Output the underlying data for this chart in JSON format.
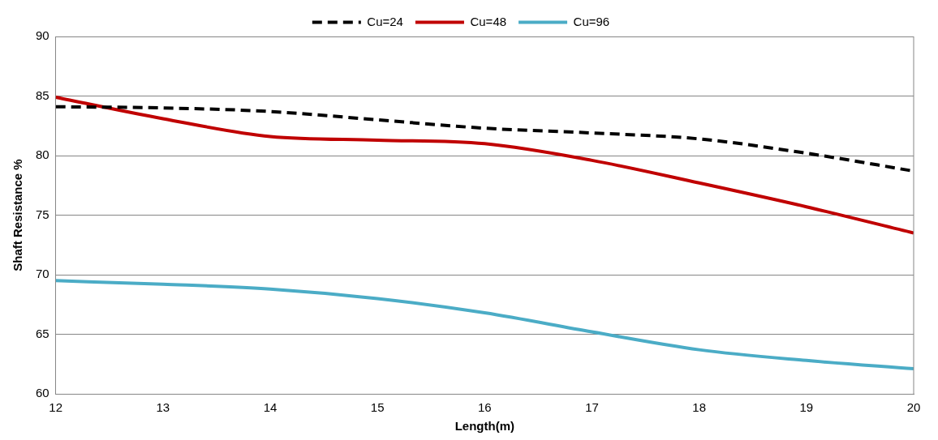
{
  "chart_data": {
    "type": "line",
    "xlabel": "Length(m)",
    "ylabel": "Shaft Resistance %",
    "x": [
      12,
      13,
      14,
      15,
      16,
      17,
      18,
      19,
      20
    ],
    "series": [
      {
        "name": "Cu=24",
        "color": "#000000",
        "line_style": "dashed",
        "values": [
          84.1,
          84.0,
          83.7,
          83.0,
          82.3,
          81.9,
          81.4,
          80.2,
          78.7
        ]
      },
      {
        "name": "Cu=48",
        "color": "#c00000",
        "values": [
          84.9,
          83.1,
          81.6,
          81.3,
          81.0,
          79.6,
          77.7,
          75.7,
          73.5
        ]
      },
      {
        "name": "Cu=96",
        "color": "#4bacc6",
        "values": [
          69.5,
          69.2,
          68.8,
          68.0,
          66.8,
          65.2,
          63.7,
          62.8,
          62.1
        ]
      }
    ],
    "xlim": [
      12,
      20
    ],
    "xticks": [
      12,
      13,
      14,
      15,
      16,
      17,
      18,
      19,
      20
    ],
    "ylim": [
      60,
      90
    ],
    "yticks": [
      60,
      65,
      70,
      75,
      80,
      85,
      90
    ],
    "grid": "y",
    "legend": "top",
    "marker": "none",
    "line_style": "solid"
  }
}
